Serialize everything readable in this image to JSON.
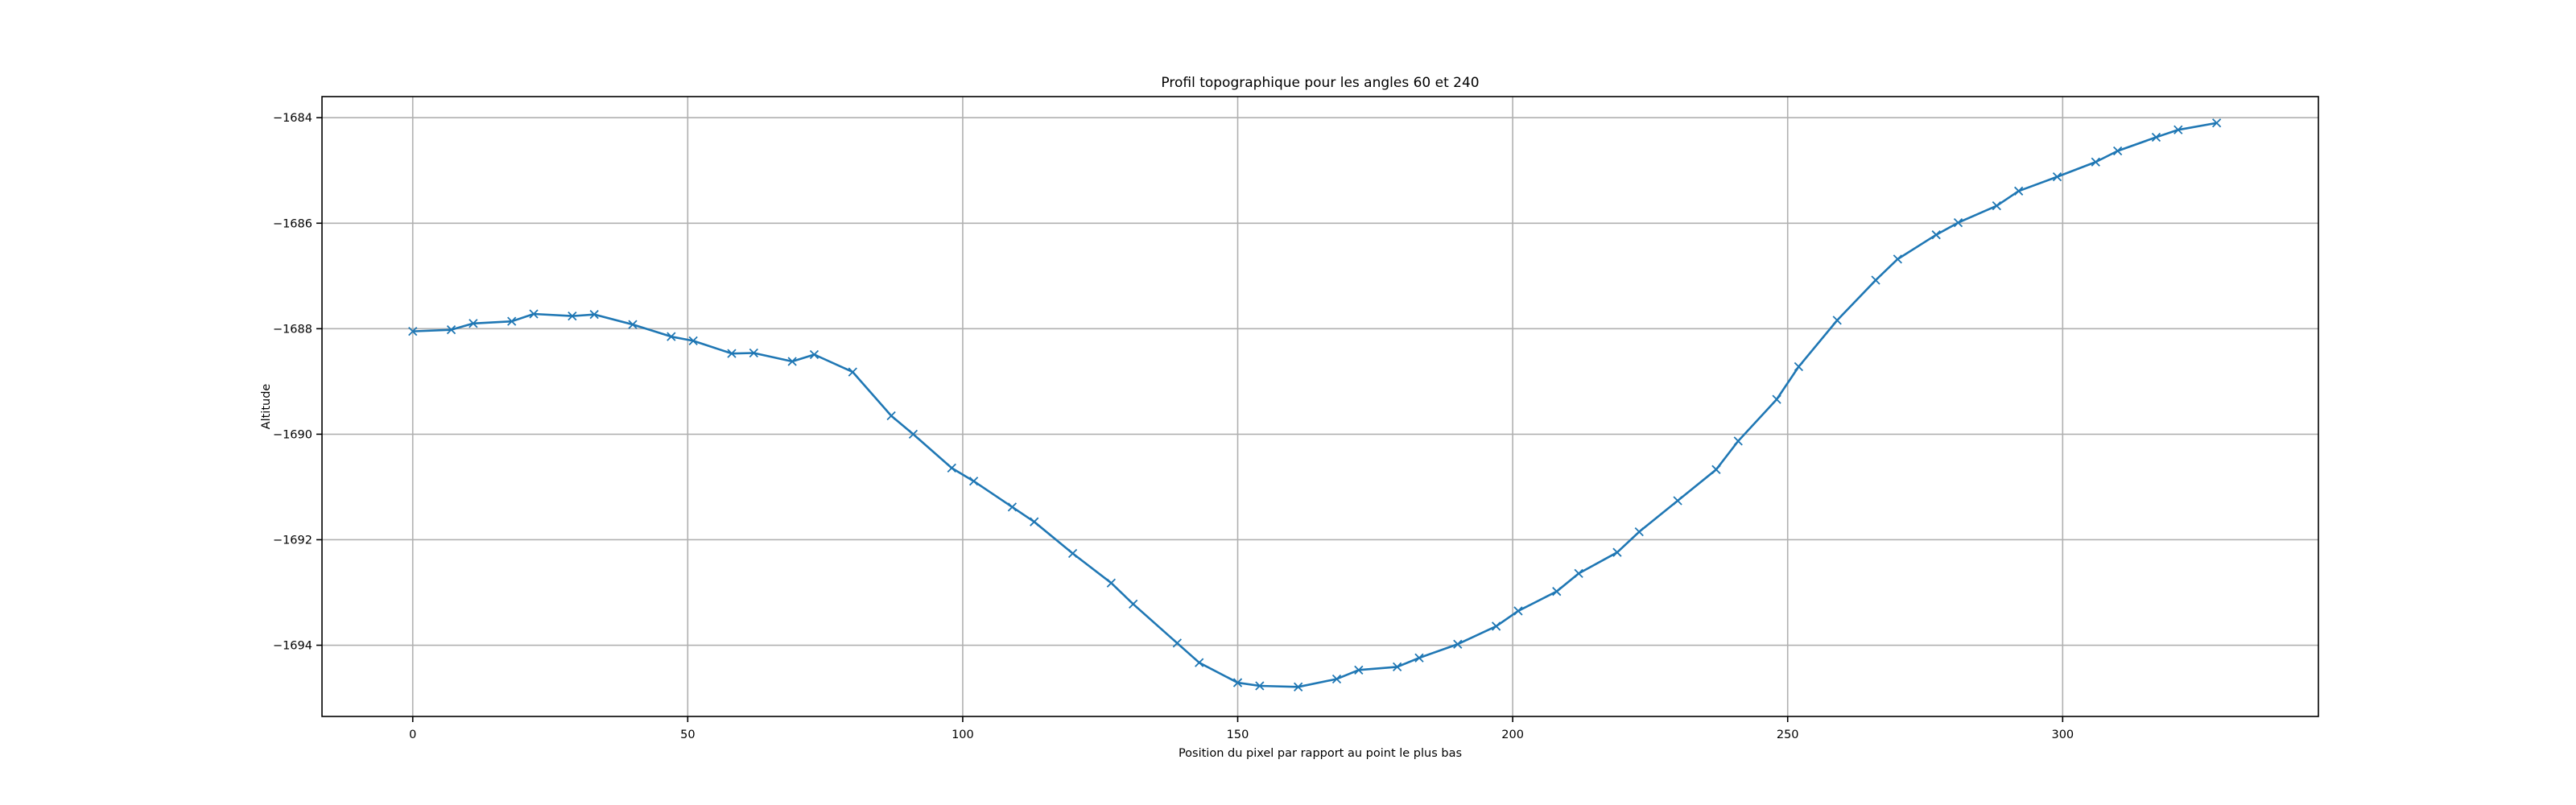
{
  "chart_data": {
    "type": "line",
    "title": "Profil topographique pour les angles 60 et 240",
    "xlabel": "Position du pixel par rapport au point le plus bas",
    "ylabel": "Altitude",
    "xlim": [
      -16.5,
      346.5
    ],
    "ylim": [
      -1695.35,
      -1683.6
    ],
    "xticks": [
      0,
      50,
      100,
      150,
      200,
      250,
      300
    ],
    "yticks": [
      -1694,
      -1692,
      -1690,
      -1688,
      -1686,
      -1684
    ],
    "grid": true,
    "marker": "x",
    "colors": {
      "series": "#1f77b4",
      "grid": "#b0b0b0",
      "axes": "#000000"
    },
    "series": [
      {
        "x": [
          0,
          7,
          11,
          18,
          22,
          29,
          33,
          40,
          47,
          51,
          58,
          62,
          69,
          73,
          80,
          87,
          91,
          98,
          102,
          109,
          113,
          120,
          127,
          131,
          139,
          143,
          150,
          154,
          161,
          168,
          172,
          179,
          183,
          190,
          197,
          201,
          208,
          212,
          219,
          223,
          230,
          237,
          241,
          248,
          252,
          259,
          266,
          270,
          277,
          281,
          288,
          292,
          299,
          306,
          310,
          317,
          321,
          328
        ],
        "y": [
          -1688.05,
          -1688.02,
          -1687.9,
          -1687.86,
          -1687.72,
          -1687.76,
          -1687.73,
          -1687.92,
          -1688.15,
          -1688.23,
          -1688.47,
          -1688.46,
          -1688.62,
          -1688.49,
          -1688.82,
          -1689.65,
          -1690.0,
          -1690.64,
          -1690.89,
          -1691.38,
          -1691.66,
          -1692.26,
          -1692.82,
          -1693.22,
          -1693.96,
          -1694.33,
          -1694.71,
          -1694.77,
          -1694.79,
          -1694.64,
          -1694.47,
          -1694.41,
          -1694.24,
          -1693.98,
          -1693.64,
          -1693.35,
          -1692.98,
          -1692.64,
          -1692.24,
          -1691.85,
          -1691.26,
          -1690.67,
          -1690.13,
          -1689.34,
          -1688.72,
          -1687.84,
          -1687.08,
          -1686.68,
          -1686.22,
          -1685.99,
          -1685.67,
          -1685.39,
          -1685.12,
          -1684.84,
          -1684.63,
          -1684.37,
          -1684.23,
          -1684.1
        ]
      }
    ]
  }
}
